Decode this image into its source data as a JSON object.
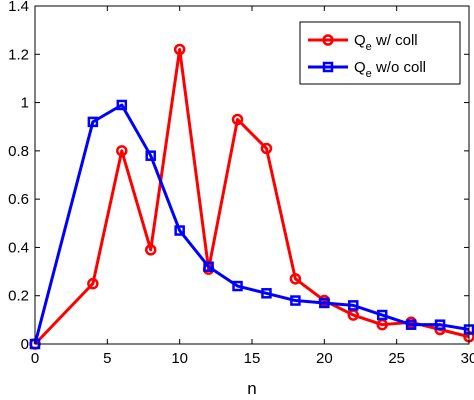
{
  "chart_data": {
    "type": "line",
    "title": "",
    "xlabel": "n",
    "ylabel": "",
    "xlim": [
      0,
      30
    ],
    "ylim": [
      0,
      1.4
    ],
    "xticks": [
      0,
      5,
      10,
      15,
      20,
      25,
      30
    ],
    "yticks": [
      0,
      0.2,
      0.4,
      0.6,
      0.8,
      1,
      1.2,
      1.4
    ],
    "xtick_labels": [
      "0",
      "5",
      "10",
      "15",
      "20",
      "25",
      "30"
    ],
    "ytick_labels": [
      "0",
      "0.2",
      "0.4",
      "0.6",
      "0.8",
      "1",
      "1.2",
      "1.4"
    ],
    "grid": false,
    "legend_position": "top-right",
    "series": [
      {
        "name_main": "Q",
        "name_sub": "e",
        "name_rest": " w/ coll",
        "color": "#ff0000",
        "marker": "circle",
        "x": [
          0,
          4,
          6,
          8,
          10,
          12,
          14,
          16,
          18,
          20,
          22,
          24,
          26,
          28,
          30
        ],
        "y": [
          0,
          0.25,
          0.8,
          0.39,
          1.22,
          0.31,
          0.93,
          0.81,
          0.27,
          0.18,
          0.12,
          0.08,
          0.09,
          0.06,
          0.03
        ]
      },
      {
        "name_main": "Q",
        "name_sub": "e",
        "name_rest": " w/o coll",
        "color": "#0000ff",
        "marker": "square",
        "x": [
          0,
          4,
          6,
          8,
          10,
          12,
          14,
          16,
          18,
          20,
          22,
          24,
          26,
          28,
          30
        ],
        "y": [
          0,
          0.92,
          0.99,
          0.78,
          0.47,
          0.32,
          0.24,
          0.21,
          0.18,
          0.17,
          0.16,
          0.12,
          0.08,
          0.08,
          0.06
        ]
      }
    ]
  }
}
